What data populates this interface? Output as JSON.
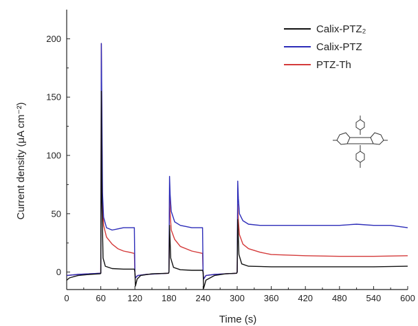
{
  "chart_data": {
    "type": "line",
    "xlabel": "Time (s)",
    "ylabel": "Current density (μA cm⁻²)",
    "xlim": [
      0,
      600
    ],
    "ylim": [
      -15,
      225
    ],
    "xticks": [
      0,
      60,
      120,
      180,
      240,
      300,
      360,
      420,
      480,
      540,
      600
    ],
    "yticks": [
      0,
      50,
      100,
      150,
      200
    ],
    "grid": false,
    "legend_position": "top-right",
    "inset": "PTZ molecular structure",
    "series": [
      {
        "name": "Calix-PTZ₂",
        "color": "#111111",
        "points": [
          [
            0,
            -7
          ],
          [
            5,
            -5
          ],
          [
            20,
            -3
          ],
          [
            40,
            -2
          ],
          [
            59,
            -1.5
          ],
          [
            60,
            -1
          ],
          [
            61,
            155
          ],
          [
            62,
            60
          ],
          [
            64,
            12
          ],
          [
            68,
            5
          ],
          [
            80,
            3
          ],
          [
            100,
            2.5
          ],
          [
            119,
            2.5
          ],
          [
            120,
            0
          ],
          [
            121,
            -12
          ],
          [
            124,
            -6
          ],
          [
            130,
            -3
          ],
          [
            150,
            -1.5
          ],
          [
            179,
            -1
          ],
          [
            180,
            0
          ],
          [
            181,
            40
          ],
          [
            183,
            12
          ],
          [
            188,
            4
          ],
          [
            200,
            2
          ],
          [
            220,
            1.5
          ],
          [
            239,
            1.5
          ],
          [
            240,
            0
          ],
          [
            241,
            -14
          ],
          [
            245,
            -7
          ],
          [
            260,
            -3
          ],
          [
            280,
            -1.5
          ],
          [
            299,
            -1
          ],
          [
            300,
            0
          ],
          [
            301,
            45
          ],
          [
            303,
            15
          ],
          [
            308,
            7
          ],
          [
            320,
            5
          ],
          [
            360,
            4.5
          ],
          [
            420,
            4.5
          ],
          [
            480,
            4.5
          ],
          [
            540,
            4.5
          ],
          [
            600,
            5
          ]
        ]
      },
      {
        "name": "Calix-PTZ",
        "color": "#2b2bb8",
        "points": [
          [
            0,
            -3
          ],
          [
            20,
            -2
          ],
          [
            40,
            -1.5
          ],
          [
            59,
            -1
          ],
          [
            60,
            -1
          ],
          [
            61,
            196
          ],
          [
            62,
            130
          ],
          [
            63,
            68
          ],
          [
            65,
            47
          ],
          [
            70,
            38
          ],
          [
            80,
            36
          ],
          [
            90,
            37
          ],
          [
            100,
            38
          ],
          [
            110,
            38
          ],
          [
            119,
            38
          ],
          [
            120,
            0
          ],
          [
            121,
            -5
          ],
          [
            125,
            -3
          ],
          [
            140,
            -2
          ],
          [
            160,
            -1.5
          ],
          [
            179,
            -1
          ],
          [
            180,
            0
          ],
          [
            181,
            82
          ],
          [
            182,
            66
          ],
          [
            184,
            52
          ],
          [
            190,
            43
          ],
          [
            200,
            40
          ],
          [
            220,
            38
          ],
          [
            239,
            38
          ],
          [
            240,
            0
          ],
          [
            241,
            -6
          ],
          [
            245,
            -3
          ],
          [
            260,
            -2
          ],
          [
            280,
            -1.5
          ],
          [
            299,
            -1
          ],
          [
            300,
            0
          ],
          [
            301,
            78
          ],
          [
            302,
            63
          ],
          [
            304,
            50
          ],
          [
            310,
            44
          ],
          [
            320,
            41
          ],
          [
            340,
            40
          ],
          [
            360,
            40
          ],
          [
            420,
            40
          ],
          [
            480,
            40
          ],
          [
            510,
            41
          ],
          [
            540,
            40
          ],
          [
            570,
            40
          ],
          [
            600,
            38
          ]
        ]
      },
      {
        "name": "PTZ-Th",
        "color": "#d43a3a",
        "points": [
          [
            0,
            -3
          ],
          [
            20,
            -2
          ],
          [
            40,
            -1.5
          ],
          [
            59,
            -1
          ],
          [
            60,
            -1
          ],
          [
            61,
            196
          ],
          [
            62,
            110
          ],
          [
            63,
            58
          ],
          [
            65,
            40
          ],
          [
            70,
            30
          ],
          [
            80,
            24
          ],
          [
            90,
            20
          ],
          [
            100,
            18
          ],
          [
            110,
            17
          ],
          [
            119,
            16
          ],
          [
            120,
            0
          ],
          [
            121,
            -5
          ],
          [
            125,
            -3
          ],
          [
            140,
            -2
          ],
          [
            160,
            -1.5
          ],
          [
            179,
            -1
          ],
          [
            180,
            0
          ],
          [
            181,
            66
          ],
          [
            182,
            50
          ],
          [
            184,
            36
          ],
          [
            190,
            28
          ],
          [
            200,
            22
          ],
          [
            220,
            18
          ],
          [
            239,
            16
          ],
          [
            240,
            0
          ],
          [
            241,
            -6
          ],
          [
            245,
            -3
          ],
          [
            260,
            -2
          ],
          [
            280,
            -1.5
          ],
          [
            299,
            -1
          ],
          [
            300,
            0
          ],
          [
            301,
            58
          ],
          [
            302,
            44
          ],
          [
            304,
            32
          ],
          [
            310,
            24
          ],
          [
            320,
            20
          ],
          [
            340,
            17
          ],
          [
            360,
            15
          ],
          [
            420,
            14
          ],
          [
            480,
            13.5
          ],
          [
            540,
            13.5
          ],
          [
            600,
            14
          ]
        ]
      }
    ]
  }
}
